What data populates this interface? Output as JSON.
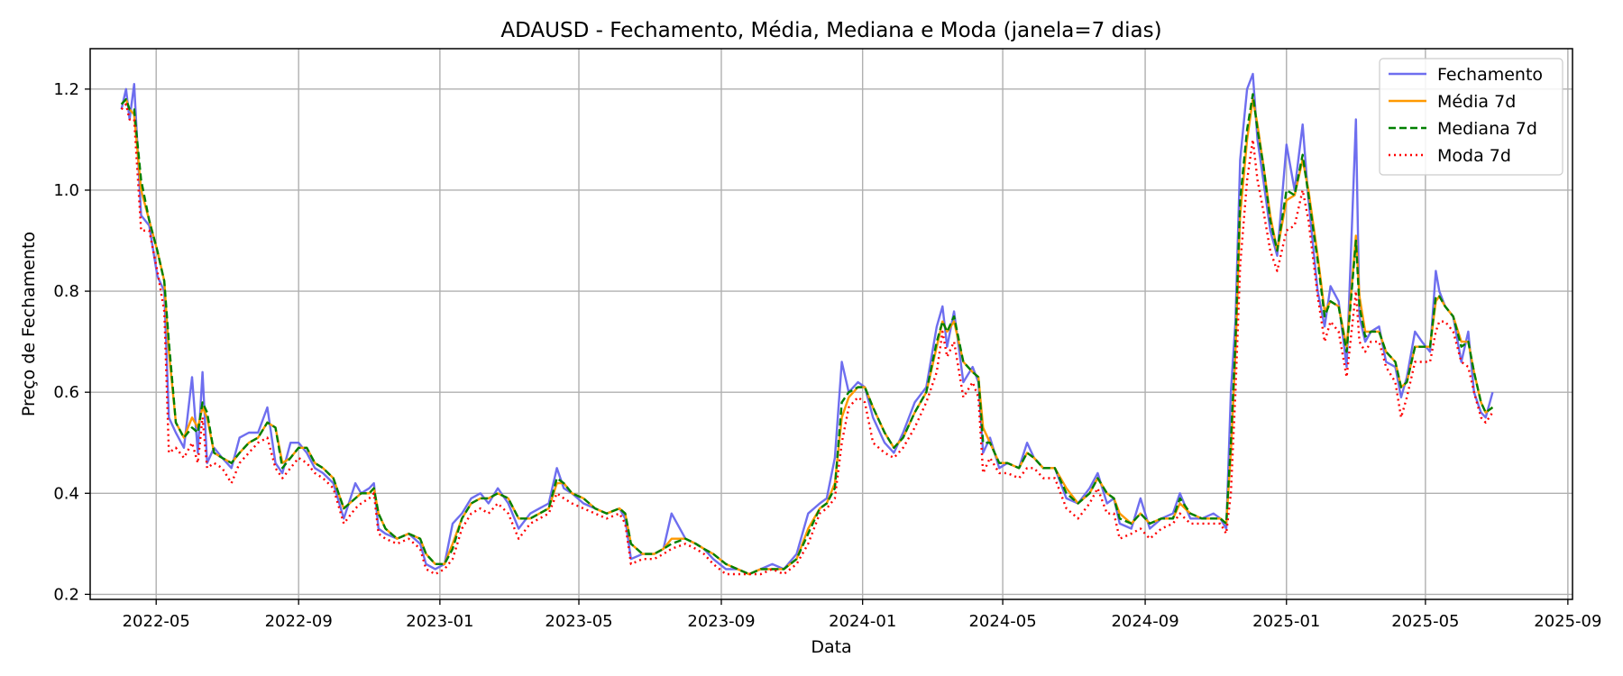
{
  "chart_data": {
    "type": "line",
    "title": "ADAUSD - Fechamento, Média, Mediana e Moda (janela=7 dias)",
    "xlabel": "Data",
    "ylabel": "Preço de Fechamento",
    "xlim": [
      "2022-03-05",
      "2025-09-05"
    ],
    "ylim": [
      0.19,
      1.28
    ],
    "x_ticks": [
      "2022-05",
      "2022-09",
      "2023-01",
      "2023-05",
      "2023-09",
      "2024-01",
      "2024-05",
      "2024-09",
      "2025-01",
      "2025-05",
      "2025-09"
    ],
    "y_ticks": [
      "0.2",
      "0.4",
      "0.6",
      "0.8",
      "1.0",
      "1.2"
    ],
    "grid": true,
    "legend_position": "top-right",
    "colors": {
      "fechamento": "#6666ee",
      "media": "#ff9900",
      "mediana": "#008000",
      "moda": "#ff0000"
    },
    "series": [
      {
        "name": "Fechamento",
        "style": "solid"
      },
      {
        "name": "Média 7d",
        "style": "solid"
      },
      {
        "name": "Mediana 7d",
        "style": "dashed"
      },
      {
        "name": "Moda 7d",
        "style": "dotted"
      }
    ],
    "x": [
      "2022-04-01",
      "2022-04-05",
      "2022-04-08",
      "2022-04-12",
      "2022-04-18",
      "2022-04-25",
      "2022-05-02",
      "2022-05-08",
      "2022-05-12",
      "2022-05-18",
      "2022-05-25",
      "2022-06-01",
      "2022-06-06",
      "2022-06-10",
      "2022-06-14",
      "2022-06-20",
      "2022-06-27",
      "2022-07-05",
      "2022-07-12",
      "2022-07-20",
      "2022-07-28",
      "2022-08-05",
      "2022-08-12",
      "2022-08-18",
      "2022-08-25",
      "2022-09-01",
      "2022-09-08",
      "2022-09-15",
      "2022-09-22",
      "2022-10-01",
      "2022-10-10",
      "2022-10-20",
      "2022-10-25",
      "2022-11-01",
      "2022-11-05",
      "2022-11-09",
      "2022-11-15",
      "2022-11-25",
      "2022-12-05",
      "2022-12-15",
      "2022-12-20",
      "2022-12-28",
      "2023-01-05",
      "2023-01-12",
      "2023-01-20",
      "2023-01-28",
      "2023-02-05",
      "2023-02-12",
      "2023-02-20",
      "2023-03-01",
      "2023-03-10",
      "2023-03-20",
      "2023-03-28",
      "2023-04-05",
      "2023-04-12",
      "2023-04-18",
      "2023-04-25",
      "2023-05-05",
      "2023-05-15",
      "2023-05-25",
      "2023-06-05",
      "2023-06-10",
      "2023-06-15",
      "2023-06-25",
      "2023-07-05",
      "2023-07-13",
      "2023-07-20",
      "2023-08-01",
      "2023-08-10",
      "2023-08-17",
      "2023-08-25",
      "2023-09-05",
      "2023-09-15",
      "2023-09-25",
      "2023-10-05",
      "2023-10-15",
      "2023-10-25",
      "2023-11-05",
      "2023-11-15",
      "2023-11-25",
      "2023-12-01",
      "2023-12-08",
      "2023-12-14",
      "2023-12-20",
      "2023-12-28",
      "2024-01-03",
      "2024-01-10",
      "2024-01-20",
      "2024-01-28",
      "2024-02-05",
      "2024-02-15",
      "2024-02-25",
      "2024-03-05",
      "2024-03-10",
      "2024-03-14",
      "2024-03-20",
      "2024-03-28",
      "2024-04-05",
      "2024-04-10",
      "2024-04-14",
      "2024-04-20",
      "2024-04-28",
      "2024-05-05",
      "2024-05-15",
      "2024-05-22",
      "2024-05-28",
      "2024-06-05",
      "2024-06-15",
      "2024-06-25",
      "2024-07-05",
      "2024-07-15",
      "2024-07-22",
      "2024-07-30",
      "2024-08-05",
      "2024-08-10",
      "2024-08-20",
      "2024-08-28",
      "2024-09-05",
      "2024-09-15",
      "2024-09-25",
      "2024-10-01",
      "2024-10-10",
      "2024-10-20",
      "2024-10-30",
      "2024-11-05",
      "2024-11-10",
      "2024-11-14",
      "2024-11-18",
      "2024-11-22",
      "2024-11-28",
      "2024-12-03",
      "2024-12-07",
      "2024-12-12",
      "2024-12-18",
      "2024-12-24",
      "2025-01-01",
      "2025-01-08",
      "2025-01-15",
      "2025-01-20",
      "2025-01-28",
      "2025-02-03",
      "2025-02-08",
      "2025-02-15",
      "2025-02-22",
      "2025-03-02",
      "2025-03-05",
      "2025-03-10",
      "2025-03-15",
      "2025-03-22",
      "2025-03-28",
      "2025-04-05",
      "2025-04-10",
      "2025-04-15",
      "2025-04-22",
      "2025-04-28",
      "2025-05-05",
      "2025-05-10",
      "2025-05-13",
      "2025-05-18",
      "2025-05-25",
      "2025-06-01",
      "2025-06-07",
      "2025-06-12",
      "2025-06-18",
      "2025-06-22",
      "2025-06-28",
      "2025-07-03"
    ],
    "fechamento": [
      1.16,
      1.2,
      1.14,
      1.21,
      0.95,
      0.93,
      0.83,
      0.8,
      0.55,
      0.52,
      0.49,
      0.63,
      0.48,
      0.64,
      0.46,
      0.49,
      0.47,
      0.45,
      0.51,
      0.52,
      0.52,
      0.57,
      0.46,
      0.44,
      0.5,
      0.5,
      0.48,
      0.45,
      0.44,
      0.42,
      0.35,
      0.42,
      0.4,
      0.41,
      0.42,
      0.33,
      0.32,
      0.31,
      0.32,
      0.3,
      0.26,
      0.25,
      0.26,
      0.34,
      0.36,
      0.39,
      0.4,
      0.38,
      0.41,
      0.38,
      0.33,
      0.36,
      0.37,
      0.38,
      0.45,
      0.41,
      0.4,
      0.38,
      0.37,
      0.36,
      0.37,
      0.35,
      0.27,
      0.28,
      0.28,
      0.29,
      0.36,
      0.31,
      0.3,
      0.29,
      0.27,
      0.25,
      0.25,
      0.24,
      0.25,
      0.26,
      0.25,
      0.28,
      0.36,
      0.38,
      0.39,
      0.47,
      0.66,
      0.6,
      0.62,
      0.61,
      0.55,
      0.5,
      0.48,
      0.52,
      0.58,
      0.61,
      0.73,
      0.77,
      0.69,
      0.76,
      0.62,
      0.65,
      0.62,
      0.48,
      0.51,
      0.45,
      0.46,
      0.45,
      0.5,
      0.47,
      0.45,
      0.45,
      0.39,
      0.38,
      0.41,
      0.44,
      0.38,
      0.39,
      0.34,
      0.33,
      0.39,
      0.33,
      0.35,
      0.36,
      0.4,
      0.35,
      0.35,
      0.36,
      0.35,
      0.33,
      0.6,
      0.74,
      1.06,
      1.2,
      1.23,
      1.1,
      1.02,
      0.92,
      0.87,
      1.09,
      1.0,
      1.13,
      0.98,
      0.8,
      0.73,
      0.81,
      0.78,
      0.65,
      1.14,
      0.75,
      0.7,
      0.72,
      0.73,
      0.66,
      0.65,
      0.59,
      0.63,
      0.72,
      0.7,
      0.68,
      0.84,
      0.8,
      0.77,
      0.75,
      0.66,
      0.72,
      0.6,
      0.56,
      0.55,
      0.6
    ],
    "media": [
      1.17,
      1.18,
      1.16,
      1.15,
      1.0,
      0.94,
      0.88,
      0.82,
      0.68,
      0.54,
      0.51,
      0.55,
      0.53,
      0.57,
      0.55,
      0.48,
      0.47,
      0.46,
      0.48,
      0.5,
      0.51,
      0.54,
      0.53,
      0.46,
      0.47,
      0.49,
      0.49,
      0.46,
      0.45,
      0.43,
      0.37,
      0.39,
      0.4,
      0.4,
      0.41,
      0.36,
      0.33,
      0.31,
      0.32,
      0.31,
      0.28,
      0.26,
      0.26,
      0.3,
      0.35,
      0.38,
      0.39,
      0.39,
      0.4,
      0.39,
      0.35,
      0.35,
      0.36,
      0.37,
      0.42,
      0.42,
      0.4,
      0.39,
      0.37,
      0.36,
      0.37,
      0.36,
      0.3,
      0.28,
      0.28,
      0.29,
      0.31,
      0.31,
      0.3,
      0.29,
      0.28,
      0.26,
      0.25,
      0.24,
      0.25,
      0.25,
      0.25,
      0.27,
      0.33,
      0.37,
      0.38,
      0.42,
      0.55,
      0.59,
      0.61,
      0.61,
      0.57,
      0.52,
      0.49,
      0.51,
      0.56,
      0.6,
      0.69,
      0.74,
      0.72,
      0.74,
      0.66,
      0.64,
      0.63,
      0.53,
      0.5,
      0.46,
      0.46,
      0.45,
      0.48,
      0.47,
      0.45,
      0.45,
      0.41,
      0.38,
      0.4,
      0.43,
      0.4,
      0.39,
      0.36,
      0.34,
      0.36,
      0.34,
      0.35,
      0.35,
      0.38,
      0.36,
      0.35,
      0.35,
      0.35,
      0.34,
      0.48,
      0.68,
      0.95,
      1.1,
      1.18,
      1.13,
      1.05,
      0.95,
      0.88,
      0.98,
      0.99,
      1.06,
      1.0,
      0.87,
      0.76,
      0.78,
      0.77,
      0.69,
      0.91,
      0.79,
      0.72,
      0.72,
      0.72,
      0.68,
      0.66,
      0.61,
      0.62,
      0.69,
      0.69,
      0.69,
      0.78,
      0.79,
      0.77,
      0.75,
      0.7,
      0.7,
      0.64,
      0.58,
      0.56,
      0.57
    ],
    "mediana": [
      1.17,
      1.18,
      1.16,
      1.16,
      1.02,
      0.94,
      0.88,
      0.82,
      0.7,
      0.54,
      0.51,
      0.53,
      0.52,
      0.58,
      0.56,
      0.48,
      0.47,
      0.46,
      0.48,
      0.5,
      0.51,
      0.54,
      0.53,
      0.45,
      0.47,
      0.49,
      0.49,
      0.46,
      0.45,
      0.43,
      0.37,
      0.39,
      0.4,
      0.4,
      0.41,
      0.36,
      0.33,
      0.31,
      0.32,
      0.31,
      0.28,
      0.26,
      0.26,
      0.29,
      0.35,
      0.38,
      0.39,
      0.39,
      0.4,
      0.39,
      0.35,
      0.35,
      0.36,
      0.37,
      0.43,
      0.42,
      0.4,
      0.39,
      0.37,
      0.36,
      0.37,
      0.36,
      0.3,
      0.28,
      0.28,
      0.29,
      0.3,
      0.31,
      0.3,
      0.29,
      0.28,
      0.26,
      0.25,
      0.24,
      0.25,
      0.25,
      0.25,
      0.27,
      0.32,
      0.37,
      0.38,
      0.41,
      0.58,
      0.6,
      0.61,
      0.61,
      0.57,
      0.52,
      0.49,
      0.51,
      0.56,
      0.6,
      0.7,
      0.74,
      0.72,
      0.75,
      0.66,
      0.64,
      0.63,
      0.5,
      0.5,
      0.46,
      0.46,
      0.45,
      0.48,
      0.47,
      0.45,
      0.45,
      0.4,
      0.38,
      0.4,
      0.43,
      0.4,
      0.39,
      0.35,
      0.34,
      0.36,
      0.34,
      0.35,
      0.35,
      0.39,
      0.36,
      0.35,
      0.35,
      0.35,
      0.34,
      0.5,
      0.7,
      0.98,
      1.12,
      1.19,
      1.12,
      1.05,
      0.94,
      0.88,
      1.0,
      0.99,
      1.07,
      0.99,
      0.86,
      0.75,
      0.78,
      0.77,
      0.68,
      0.9,
      0.77,
      0.71,
      0.72,
      0.72,
      0.68,
      0.66,
      0.61,
      0.62,
      0.69,
      0.69,
      0.69,
      0.79,
      0.79,
      0.77,
      0.75,
      0.69,
      0.7,
      0.64,
      0.58,
      0.56,
      0.57
    ],
    "moda": [
      1.16,
      1.17,
      1.14,
      1.14,
      0.92,
      0.92,
      0.84,
      0.76,
      0.48,
      0.49,
      0.47,
      0.5,
      0.46,
      0.55,
      0.45,
      0.46,
      0.45,
      0.42,
      0.46,
      0.48,
      0.5,
      0.51,
      0.45,
      0.43,
      0.45,
      0.47,
      0.46,
      0.44,
      0.43,
      0.41,
      0.34,
      0.37,
      0.38,
      0.39,
      0.4,
      0.32,
      0.31,
      0.3,
      0.31,
      0.29,
      0.25,
      0.24,
      0.25,
      0.27,
      0.33,
      0.36,
      0.37,
      0.36,
      0.38,
      0.36,
      0.31,
      0.34,
      0.35,
      0.36,
      0.4,
      0.39,
      0.38,
      0.37,
      0.36,
      0.35,
      0.36,
      0.34,
      0.26,
      0.27,
      0.27,
      0.28,
      0.29,
      0.3,
      0.29,
      0.28,
      0.26,
      0.24,
      0.24,
      0.24,
      0.24,
      0.25,
      0.24,
      0.26,
      0.3,
      0.36,
      0.37,
      0.39,
      0.5,
      0.57,
      0.59,
      0.58,
      0.5,
      0.48,
      0.47,
      0.49,
      0.53,
      0.58,
      0.64,
      0.72,
      0.67,
      0.7,
      0.59,
      0.62,
      0.59,
      0.44,
      0.47,
      0.44,
      0.44,
      0.43,
      0.45,
      0.45,
      0.43,
      0.43,
      0.37,
      0.35,
      0.38,
      0.41,
      0.36,
      0.36,
      0.31,
      0.32,
      0.33,
      0.31,
      0.33,
      0.34,
      0.36,
      0.34,
      0.34,
      0.34,
      0.34,
      0.32,
      0.4,
      0.6,
      0.85,
      1.02,
      1.1,
      1.02,
      0.96,
      0.88,
      0.84,
      0.92,
      0.93,
      1.0,
      0.94,
      0.79,
      0.7,
      0.74,
      0.72,
      0.63,
      0.8,
      0.7,
      0.68,
      0.7,
      0.7,
      0.65,
      0.62,
      0.55,
      0.59,
      0.66,
      0.66,
      0.66,
      0.72,
      0.74,
      0.74,
      0.72,
      0.66,
      0.65,
      0.6,
      0.55,
      0.54,
      0.56
    ]
  }
}
